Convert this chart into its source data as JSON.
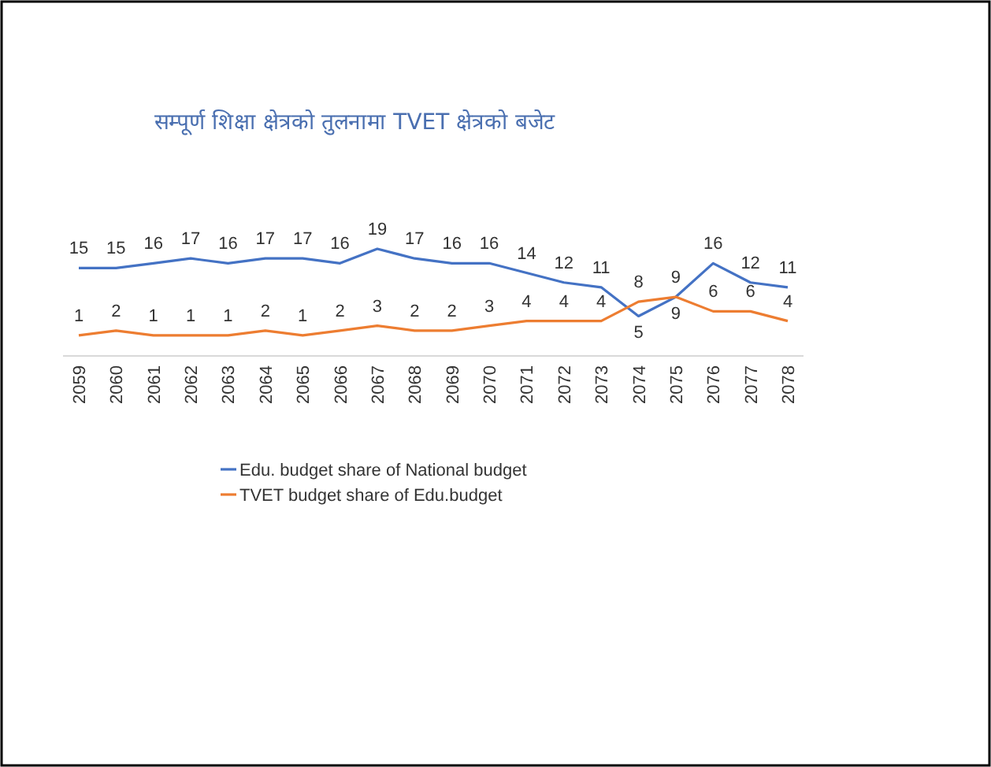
{
  "chart_data": {
    "type": "line",
    "title": "सम्पूर्ण शिक्षा क्षेत्रको तुलनामा TVET क्षेत्रको बजेट",
    "categories": [
      "2059",
      "2060",
      "2061",
      "2062",
      "2063",
      "2064",
      "2065",
      "2066",
      "2067",
      "2068",
      "2069",
      "2070",
      "2071",
      "2072",
      "2073",
      "2074",
      "2075",
      "2076",
      "2077",
      "2078"
    ],
    "series": [
      {
        "name": "Edu. budget share of National budget",
        "color": "#4472c4",
        "values": [
          15,
          15,
          16,
          17,
          16,
          17,
          17,
          16,
          19,
          17,
          16,
          16,
          14,
          12,
          11,
          5,
          9,
          16,
          12,
          11
        ]
      },
      {
        "name": "TVET budget share of Edu.budget",
        "color": "#ed7d31",
        "values": [
          1,
          2,
          1,
          1,
          1,
          2,
          1,
          2,
          3,
          2,
          2,
          3,
          4,
          4,
          4,
          8,
          9,
          6,
          6,
          4
        ]
      }
    ],
    "data_labels": true,
    "legend": "bottom",
    "marker": "none",
    "line_style": "solid"
  }
}
